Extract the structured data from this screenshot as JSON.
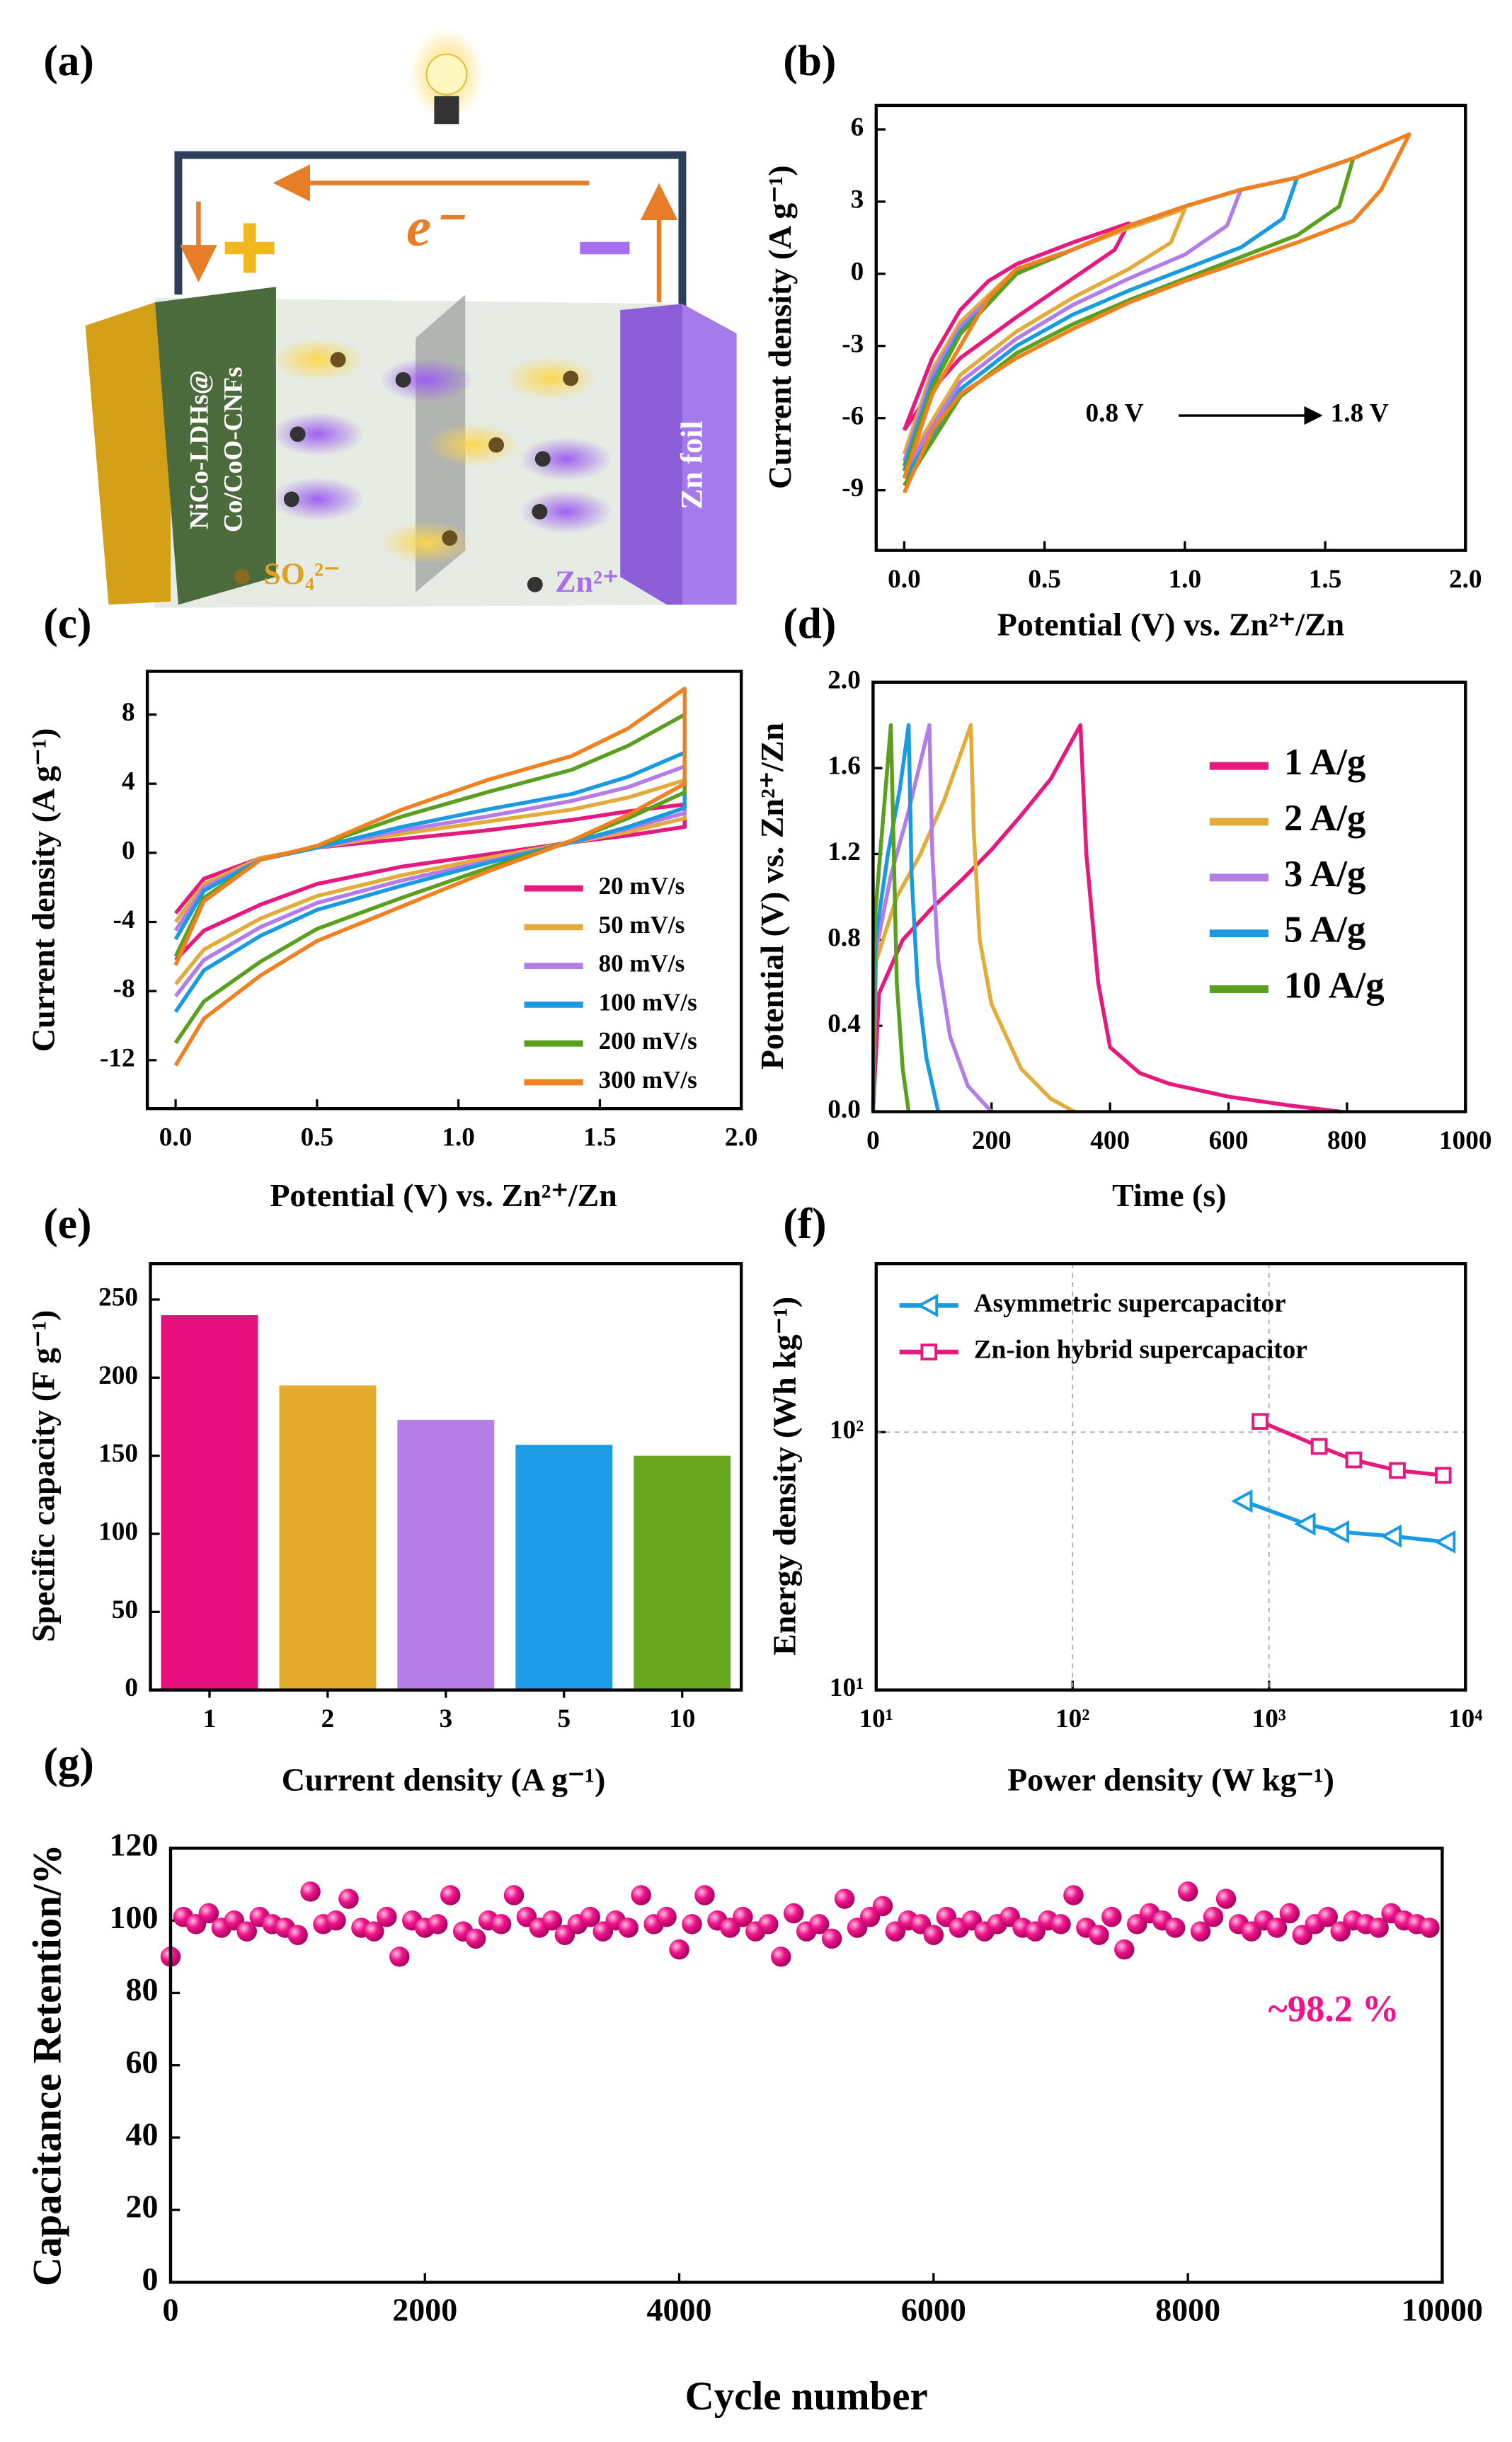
{
  "diagram": {
    "label": "(a)",
    "electron": "e⁻",
    "cathode_line1": "NiCo-LDHs@",
    "cathode_line2": "Co/CoO-CNFs",
    "anode": "Zn foil",
    "anion": "SO₄²⁻",
    "cation": "Zn²⁺"
  },
  "chart_data": [
    {
      "type": "line",
      "panel": "(b)",
      "xlabel": "Potential (V) vs. Zn²⁺/Zn",
      "ylabel": "Current density (A g⁻¹)",
      "annotations": [
        "0.8 V",
        "1.8 V"
      ],
      "xlim": [
        -0.1,
        2.0
      ],
      "ylim": [
        -11.5,
        7
      ],
      "xticks": [
        {
          "value": 0,
          "label": "0.0"
        },
        {
          "value": 0.5,
          "label": "0.5"
        },
        {
          "value": 1,
          "label": "1.0"
        },
        {
          "value": 1.5,
          "label": "1.5"
        },
        {
          "value": 2,
          "label": "2.0"
        }
      ],
      "yticks": [
        -9,
        -6,
        -3,
        0,
        3,
        6
      ],
      "series": [
        {
          "color": "#e6197e",
          "x": [
            0,
            0.1,
            0.2,
            0.3,
            0.4,
            0.6,
            0.8,
            0.75,
            0.6,
            0.4,
            0.2,
            0.1,
            0
          ],
          "values": [
            -6.5,
            -3.5,
            -1.5,
            -0.3,
            0.4,
            1.3,
            2.1,
            1.0,
            -0.2,
            -1.8,
            -3.5,
            -4.8,
            -6.5
          ]
        },
        {
          "color": "#e3ac3a",
          "x": [
            0,
            0.1,
            0.2,
            0.4,
            0.6,
            0.8,
            1.0,
            0.95,
            0.8,
            0.6,
            0.4,
            0.2,
            0
          ],
          "values": [
            -7.5,
            -4,
            -2,
            0.2,
            1,
            1.9,
            2.7,
            1.3,
            0.2,
            -1,
            -2.4,
            -4.2,
            -8
          ]
        },
        {
          "color": "#b47ce6",
          "x": [
            0,
            0.1,
            0.2,
            0.4,
            0.6,
            0.8,
            1.0,
            1.2,
            1.15,
            1.0,
            0.8,
            0.6,
            0.4,
            0.2,
            0
          ],
          "values": [
            -7.8,
            -4.2,
            -2.2,
            0.1,
            1,
            2,
            2.8,
            3.5,
            2,
            0.8,
            -0.2,
            -1.3,
            -2.7,
            -4.5,
            -8.2
          ]
        },
        {
          "color": "#1a9ae0",
          "x": [
            0,
            0.1,
            0.2,
            0.4,
            0.6,
            0.8,
            1.0,
            1.2,
            1.4,
            1.35,
            1.2,
            1.0,
            0.8,
            0.6,
            0.4,
            0.2,
            0
          ],
          "values": [
            -8,
            -4.5,
            -2.4,
            0,
            1,
            2,
            2.8,
            3.5,
            4,
            2.3,
            1.1,
            0.2,
            -0.7,
            -1.7,
            -3,
            -4.8,
            -8.5
          ]
        },
        {
          "color": "#5aa01e",
          "x": [
            0,
            0.1,
            0.2,
            0.4,
            0.6,
            0.8,
            1.0,
            1.2,
            1.4,
            1.6,
            1.55,
            1.4,
            1.2,
            1.0,
            0.8,
            0.6,
            0.4,
            0.2,
            0
          ],
          "values": [
            -8.2,
            -4.7,
            -2.5,
            0,
            1,
            2,
            2.8,
            3.5,
            4,
            4.8,
            2.8,
            1.6,
            0.7,
            -0.2,
            -1.1,
            -2.1,
            -3.3,
            -5.1,
            -8.8
          ]
        },
        {
          "color": "#f08020",
          "x": [
            0,
            0.1,
            0.2,
            0.3,
            0.4,
            0.6,
            0.8,
            1.0,
            1.2,
            1.4,
            1.6,
            1.8,
            1.7,
            1.6,
            1.4,
            1.2,
            1.0,
            0.8,
            0.6,
            0.4,
            0.2,
            0.1,
            0
          ],
          "values": [
            -8.5,
            -5,
            -3,
            -1,
            0.2,
            1,
            2,
            2.8,
            3.5,
            4,
            4.8,
            5.8,
            3.5,
            2.2,
            1.3,
            0.5,
            -0.3,
            -1.2,
            -2.3,
            -3.5,
            -5,
            -6.5,
            -9.1
          ]
        }
      ]
    },
    {
      "type": "line",
      "panel": "(c)",
      "xlabel": "Potential (V) vs. Zn²⁺/Zn",
      "ylabel": "Current density (A g⁻¹)",
      "legend": "lower right",
      "xlim": [
        -0.1,
        2.0
      ],
      "ylim": [
        -14.8,
        10.5
      ],
      "xticks": [
        {
          "value": 0,
          "label": "0.0"
        },
        {
          "value": 0.5,
          "label": "0.5"
        },
        {
          "value": 1,
          "label": "1.0"
        },
        {
          "value": 1.5,
          "label": "1.5"
        },
        {
          "value": 2,
          "label": "2.0"
        }
      ],
      "yticks": [
        -12,
        -8,
        -4,
        0,
        4,
        8
      ],
      "x": [
        0,
        0.1,
        0.3,
        0.5,
        0.8,
        1.1,
        1.4,
        1.6,
        1.8,
        1.8,
        1.6,
        1.4,
        1.1,
        0.8,
        0.5,
        0.3,
        0.1,
        0
      ],
      "series": [
        {
          "name": "20 mV/s",
          "color": "#e6197e",
          "values": [
            -3.5,
            -1.5,
            -0.3,
            0.3,
            0.8,
            1.3,
            1.9,
            2.4,
            2.8,
            1.5,
            1.0,
            0.6,
            -0.1,
            -0.8,
            -1.8,
            -3.0,
            -4.5,
            -6.2
          ]
        },
        {
          "name": "50 mV/s",
          "color": "#e3ac3a",
          "values": [
            -4,
            -1.8,
            -0.3,
            0.3,
            1.1,
            1.8,
            2.5,
            3.2,
            4.2,
            2.0,
            1.2,
            0.6,
            -0.3,
            -1.3,
            -2.5,
            -3.8,
            -5.6,
            -7.6
          ]
        },
        {
          "name": "80 mV/s",
          "color": "#b47ce6",
          "values": [
            -4.5,
            -2,
            -0.4,
            0.3,
            1.3,
            2.1,
            3,
            3.8,
            5,
            2.3,
            1.4,
            0.6,
            -0.5,
            -1.6,
            -2.9,
            -4.3,
            -6.2,
            -8.3
          ]
        },
        {
          "name": "100 mV/s",
          "color": "#1a9ae0",
          "values": [
            -5,
            -2.2,
            -0.4,
            0.3,
            1.5,
            2.5,
            3.4,
            4.4,
            5.8,
            2.6,
            1.5,
            0.6,
            -0.6,
            -1.9,
            -3.3,
            -4.8,
            -6.8,
            -9.2
          ]
        },
        {
          "name": "200 mV/s",
          "color": "#5aa01e",
          "values": [
            -6,
            -2.6,
            -0.4,
            0.4,
            2.1,
            3.5,
            4.8,
            6.2,
            8,
            3.5,
            2.0,
            0.7,
            -0.9,
            -2.6,
            -4.4,
            -6.3,
            -8.6,
            -11
          ]
        },
        {
          "name": "300 mV/s",
          "color": "#f08020",
          "values": [
            -6.5,
            -2.8,
            -0.4,
            0.4,
            2.5,
            4.2,
            5.6,
            7.2,
            9.5,
            4,
            2.2,
            0.7,
            -1.1,
            -3.1,
            -5.1,
            -7.1,
            -9.6,
            -12.3
          ]
        }
      ]
    },
    {
      "type": "line",
      "panel": "(d)",
      "xlabel": "Time (s)",
      "ylabel": "Potential (V) vs. Zn²⁺/Zn",
      "legend": "upper right",
      "xlim": [
        0,
        1000
      ],
      "ylim": [
        0,
        2.0
      ],
      "xticks": [
        0,
        200,
        400,
        600,
        800,
        1000
      ],
      "yticks": [
        {
          "value": 0,
          "label": "0.0"
        },
        {
          "value": 0.4,
          "label": "0.4"
        },
        {
          "value": 0.8,
          "label": "0.8"
        },
        {
          "value": 1.2,
          "label": "1.2"
        },
        {
          "value": 1.6,
          "label": "1.6"
        },
        {
          "value": 2.0,
          "label": "2.0"
        }
      ],
      "series": [
        {
          "name": "1 A/g",
          "color": "#e6197e",
          "x": [
            0,
            10,
            50,
            100,
            150,
            200,
            250,
            300,
            350,
            360,
            380,
            400,
            450,
            500,
            600,
            700,
            790
          ],
          "values": [
            0,
            0.55,
            0.8,
            0.95,
            1.08,
            1.22,
            1.38,
            1.55,
            1.8,
            1.2,
            0.6,
            0.3,
            0.18,
            0.13,
            0.07,
            0.03,
            0
          ]
        },
        {
          "name": "2 A/g",
          "color": "#e3ac3a",
          "x": [
            0,
            5,
            40,
            80,
            120,
            165,
            170,
            180,
            200,
            250,
            300,
            340
          ],
          "values": [
            0,
            0.7,
            1.0,
            1.2,
            1.45,
            1.8,
            1.3,
            0.8,
            0.5,
            0.2,
            0.06,
            0
          ]
        },
        {
          "name": "3 A/g",
          "color": "#b47ce6",
          "x": [
            0,
            5,
            30,
            60,
            95,
            100,
            110,
            130,
            160,
            200
          ],
          "values": [
            0,
            0.75,
            1.1,
            1.4,
            1.8,
            1.2,
            0.7,
            0.35,
            0.12,
            0
          ]
        },
        {
          "name": "5 A/g",
          "color": "#1a9ae0",
          "x": [
            0,
            4,
            25,
            45,
            60,
            65,
            75,
            90,
            110
          ],
          "values": [
            0,
            0.8,
            1.2,
            1.5,
            1.8,
            1.1,
            0.6,
            0.25,
            0
          ]
        },
        {
          "name": "10 A/g",
          "color": "#5aa01e",
          "x": [
            0,
            3,
            15,
            30,
            35,
            40,
            50,
            60
          ],
          "values": [
            0,
            0.9,
            1.3,
            1.8,
            1.2,
            0.6,
            0.2,
            0
          ]
        }
      ]
    },
    {
      "type": "bar",
      "panel": "(e)",
      "xlabel": "Current density (A g⁻¹)",
      "ylabel": "Specific capacity (F g⁻¹)",
      "categories": [
        "1",
        "2",
        "3",
        "5",
        "10"
      ],
      "values": [
        240,
        195,
        173,
        157,
        150
      ],
      "colors": [
        "#e8107e",
        "#e3aa2c",
        "#b67ee6",
        "#1e9be6",
        "#67a51e"
      ],
      "ylim": [
        0,
        273
      ],
      "yticks": [
        0,
        50,
        100,
        150,
        200,
        250
      ]
    },
    {
      "type": "line",
      "panel": "(f)",
      "xlabel": "Power density (W kg⁻¹)",
      "ylabel": "Energy density (Wh kg⁻¹)",
      "legend": "upper left",
      "log_x": true,
      "log_y": true,
      "grid": true,
      "xlim": [
        10,
        10000
      ],
      "ylim": [
        10,
        450
      ],
      "xticks": [
        {
          "value": 10,
          "label": "10¹"
        },
        {
          "value": 100,
          "label": "10²"
        },
        {
          "value": 1000,
          "label": "10³"
        },
        {
          "value": 10000,
          "label": "10⁴"
        }
      ],
      "yticks": [
        {
          "value": 10,
          "label": "10¹"
        },
        {
          "value": 100,
          "label": "10²"
        }
      ],
      "series": [
        {
          "name": "Asymmetric  supercapacitor",
          "color": "#1a9ae0",
          "marker": "triangle-left",
          "x": [
            740,
            1550,
            2300,
            4250,
            8000
          ],
          "values": [
            54,
            44,
            41,
            39.5,
            37.5
          ]
        },
        {
          "name": "Zn-ion hybrid supercapacitor",
          "color": "#e6197e",
          "marker": "square",
          "x": [
            900,
            1800,
            2700,
            4500,
            7700
          ],
          "values": [
            110,
            88,
            78,
            71,
            68
          ]
        }
      ]
    },
    {
      "type": "scatter",
      "panel": "(g)",
      "xlabel": "Cycle number",
      "ylabel": "Capacitance Retention/%",
      "annotations": [
        "~98.2 %"
      ],
      "color": "#f0148c",
      "xlim": [
        0,
        10000
      ],
      "ylim": [
        0,
        120
      ],
      "xticks": [
        0,
        2000,
        4000,
        6000,
        8000,
        10000
      ],
      "yticks": [
        0,
        20,
        40,
        60,
        80,
        100,
        120
      ],
      "x": [
        0,
        100,
        200,
        300,
        400,
        500,
        600,
        700,
        800,
        900,
        1000,
        1100,
        1200,
        1300,
        1400,
        1500,
        1600,
        1700,
        1800,
        1900,
        2000,
        2100,
        2200,
        2300,
        2400,
        2500,
        2600,
        2700,
        2800,
        2900,
        3000,
        3100,
        3200,
        3300,
        3400,
        3500,
        3600,
        3700,
        3800,
        3900,
        4000,
        4100,
        4200,
        4300,
        4400,
        4500,
        4600,
        4700,
        4800,
        4900,
        5000,
        5100,
        5200,
        5300,
        5400,
        5500,
        5600,
        5700,
        5800,
        5900,
        6000,
        6100,
        6200,
        6300,
        6400,
        6500,
        6600,
        6700,
        6800,
        6900,
        7000,
        7100,
        7200,
        7300,
        7400,
        7500,
        7600,
        7700,
        7800,
        7900,
        8000,
        8100,
        8200,
        8300,
        8400,
        8500,
        8600,
        8700,
        8800,
        8900,
        9000,
        9100,
        9200,
        9300,
        9400,
        9500,
        9600,
        9700,
        9800,
        9900
      ],
      "values": [
        90,
        101,
        99,
        102,
        98,
        100,
        97,
        101,
        99,
        98,
        96,
        108,
        99,
        100,
        106,
        98,
        97,
        101,
        90,
        100,
        98,
        99,
        107,
        97,
        95,
        100,
        99,
        107,
        101,
        98,
        100,
        96,
        99,
        101,
        97,
        100,
        98,
        107,
        99,
        101,
        92,
        99,
        107,
        100,
        98,
        101,
        97,
        99,
        90,
        102,
        97,
        99,
        95,
        106,
        98,
        101,
        104,
        97,
        100,
        99,
        96,
        101,
        98,
        100,
        97,
        99,
        101,
        98,
        97,
        100,
        99,
        107,
        98,
        96,
        101,
        92,
        99,
        102,
        100,
        98,
        108,
        97,
        101,
        106,
        99,
        97,
        100,
        98,
        102,
        96,
        99,
        101,
        97,
        100,
        99,
        98,
        102,
        100,
        99,
        98
      ]
    }
  ]
}
